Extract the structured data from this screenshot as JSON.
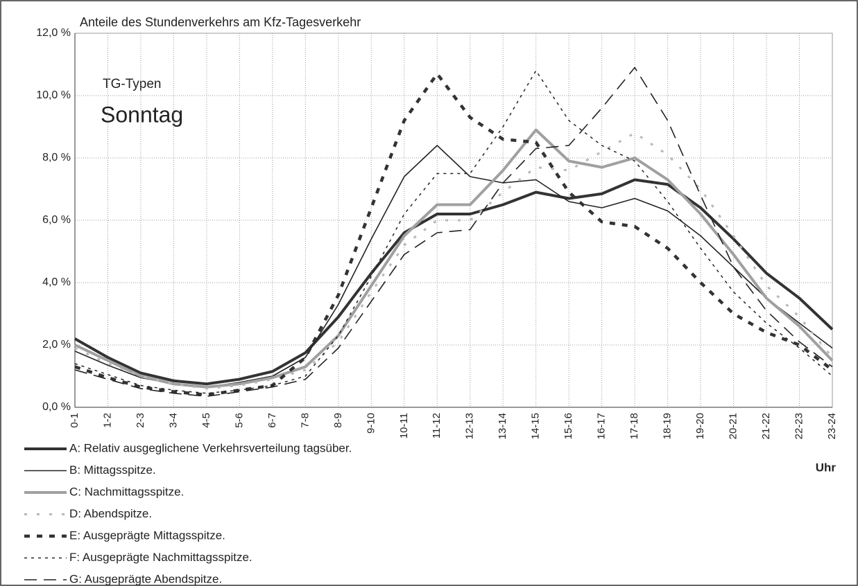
{
  "chart_data": {
    "type": "line",
    "title": "Anteile des Stundenverkehrs am Kfz-Tagesverkehr",
    "annotations": [
      "TG-Typen",
      "Sonntag"
    ],
    "x_label": "Uhr",
    "categories": [
      "0-1",
      "1-2",
      "2-3",
      "3-4",
      "4-5",
      "5-6",
      "6-7",
      "7-8",
      "8-9",
      "9-10",
      "10-11",
      "11-12",
      "12-13",
      "13-14",
      "14-15",
      "15-16",
      "16-17",
      "17-18",
      "18-19",
      "19-20",
      "20-21",
      "21-22",
      "22-23",
      "23-24"
    ],
    "ylim": [
      0,
      12
    ],
    "yticks": [
      {
        "value": 0,
        "label": "0,0 %"
      },
      {
        "value": 2,
        "label": "2,0 %"
      },
      {
        "value": 4,
        "label": "4,0 %"
      },
      {
        "value": 6,
        "label": "6,0 %"
      },
      {
        "value": 8,
        "label": "8,0 %"
      },
      {
        "value": 10,
        "label": "10,0 %"
      },
      {
        "value": 12,
        "label": "12,0 %"
      }
    ],
    "grid": true,
    "series": [
      {
        "name": "A: Relativ ausgeglichene Verkehrsverteilung tagsüber.",
        "color": "#333333",
        "values": [
          2.2,
          1.6,
          1.1,
          0.85,
          0.75,
          0.9,
          1.15,
          1.75,
          2.9,
          4.3,
          5.6,
          6.2,
          6.2,
          6.5,
          6.9,
          6.7,
          6.85,
          7.3,
          7.15,
          6.4,
          5.4,
          4.3,
          3.5,
          2.5
        ]
      },
      {
        "name": "B: Mittagsspitze.",
        "color": "#222222",
        "values": [
          1.8,
          1.35,
          0.95,
          0.75,
          0.65,
          0.8,
          1.0,
          1.6,
          3.3,
          5.4,
          7.4,
          8.4,
          7.4,
          7.2,
          7.3,
          6.6,
          6.4,
          6.7,
          6.3,
          5.5,
          4.5,
          3.5,
          2.7,
          1.9
        ]
      },
      {
        "name": "C: Nachmittagsspitze.",
        "color": "#a0a0a0",
        "values": [
          2.0,
          1.5,
          1.0,
          0.75,
          0.65,
          0.75,
          0.95,
          1.3,
          2.3,
          3.9,
          5.5,
          6.5,
          6.5,
          7.6,
          8.9,
          7.9,
          7.7,
          8.0,
          7.3,
          6.2,
          4.9,
          3.5,
          2.6,
          1.5
        ]
      },
      {
        "name": "D: Abendspitze.",
        "color": "#b8b8b8",
        "values": [
          1.9,
          1.4,
          1.0,
          0.75,
          0.6,
          0.7,
          0.9,
          1.2,
          2.1,
          3.7,
          5.2,
          6.0,
          6.0,
          6.9,
          7.7,
          7.6,
          8.2,
          8.8,
          8.1,
          7.0,
          5.5,
          3.9,
          2.9,
          1.6
        ]
      },
      {
        "name": "E: Ausgeprägte Mittagsspitze.",
        "color": "#333333",
        "values": [
          1.3,
          0.95,
          0.65,
          0.5,
          0.4,
          0.55,
          0.7,
          1.6,
          3.6,
          6.4,
          9.2,
          10.7,
          9.3,
          8.6,
          8.5,
          6.9,
          5.95,
          5.8,
          5.1,
          4.0,
          3.0,
          2.4,
          2.0,
          1.2
        ]
      },
      {
        "name": "F: Ausgeprägte Nachmittagsspitze.",
        "color": "#222222",
        "values": [
          1.4,
          1.05,
          0.7,
          0.55,
          0.45,
          0.55,
          0.7,
          1.0,
          2.3,
          4.2,
          6.2,
          7.5,
          7.5,
          9.0,
          10.8,
          9.2,
          8.4,
          7.9,
          6.6,
          5.1,
          3.7,
          2.7,
          1.9,
          1.0
        ]
      },
      {
        "name": "G: Ausgeprägte Abendspitze.",
        "color": "#222222",
        "values": [
          1.2,
          0.9,
          0.6,
          0.45,
          0.35,
          0.5,
          0.65,
          0.9,
          1.9,
          3.4,
          4.9,
          5.6,
          5.7,
          7.2,
          8.3,
          8.4,
          9.6,
          10.9,
          9.2,
          6.8,
          4.5,
          3.1,
          2.1,
          1.3
        ]
      }
    ]
  }
}
